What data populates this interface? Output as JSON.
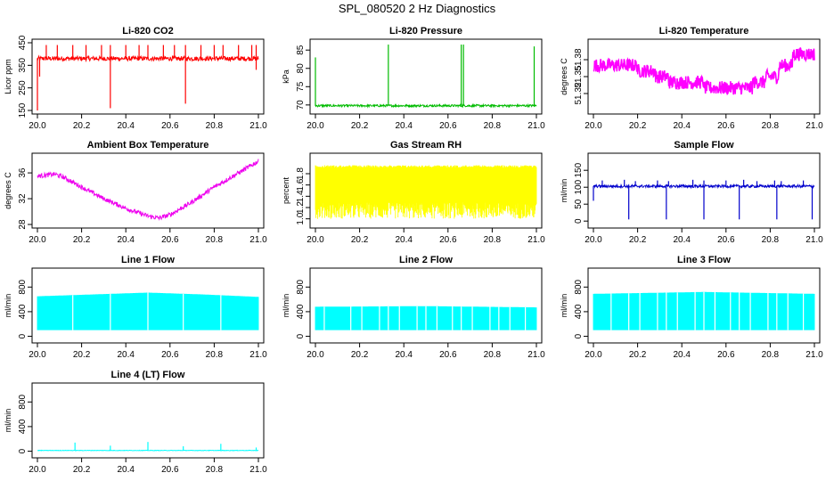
{
  "figure": {
    "title": "SPL_080520  2 Hz Diagnostics"
  },
  "chart_data": [
    {
      "type": "line",
      "title": "Li-820 CO2",
      "ylabel": "Licor ppm",
      "color": "#ff0000",
      "xlim": [
        20.0,
        21.0
      ],
      "ylim": [
        150,
        450
      ],
      "xticks": [
        "20.0",
        "20.2",
        "20.4",
        "20.6",
        "20.8",
        "21.0"
      ],
      "yticks": [
        "150",
        "250",
        "350",
        "450"
      ],
      "baseline": 380,
      "noise": 10,
      "spikes": [
        [
          20.04,
          440
        ],
        [
          20.09,
          440
        ],
        [
          20.16,
          440
        ],
        [
          20.22,
          440
        ],
        [
          20.29,
          440
        ],
        [
          20.33,
          440
        ],
        [
          20.4,
          440
        ],
        [
          20.46,
          440
        ],
        [
          20.5,
          440
        ],
        [
          20.57,
          440
        ],
        [
          20.62,
          440
        ],
        [
          20.67,
          440
        ],
        [
          20.74,
          440
        ],
        [
          20.8,
          440
        ],
        [
          20.84,
          440
        ],
        [
          20.91,
          440
        ],
        [
          20.97,
          440
        ],
        [
          20.99,
          440
        ]
      ],
      "dips": [
        [
          20.0,
          150
        ],
        [
          20.01,
          300
        ],
        [
          20.33,
          160
        ],
        [
          20.67,
          180
        ],
        [
          20.99,
          330
        ]
      ]
    },
    {
      "type": "line",
      "title": "Li-820 Pressure",
      "ylabel": "kPa",
      "color": "#00bb00",
      "xlim": [
        20.0,
        21.0
      ],
      "ylim": [
        68.5,
        87
      ],
      "xticks": [
        "20.0",
        "20.2",
        "20.4",
        "20.6",
        "20.8",
        "21.0"
      ],
      "yticks": [
        "70",
        "75",
        "80",
        "85"
      ],
      "baseline": 69.8,
      "noise": 0.3,
      "spikes": [
        [
          20.0,
          83
        ],
        [
          20.33,
          86.5
        ],
        [
          20.66,
          86.5
        ],
        [
          20.67,
          86.5
        ],
        [
          20.99,
          86
        ]
      ],
      "dips": []
    },
    {
      "type": "line",
      "title": "Li-820 Temperature",
      "ylabel": "degrees C",
      "color": "#ff00ff",
      "xlim": [
        20.0,
        21.0
      ],
      "ylim": [
        51.29,
        51.41
      ],
      "xticks": [
        "20.0",
        "20.2",
        "20.4",
        "20.6",
        "20.8",
        "21.0"
      ],
      "yticks": [
        "51.32",
        "51.35",
        "51.38"
      ],
      "steps": [
        [
          20.0,
          51.37
        ],
        [
          20.2,
          51.36
        ],
        [
          20.28,
          51.35
        ],
        [
          20.34,
          51.34
        ],
        [
          20.5,
          51.33
        ],
        [
          20.6,
          51.33
        ],
        [
          20.72,
          51.34
        ],
        [
          20.78,
          51.35
        ],
        [
          20.84,
          51.37
        ],
        [
          20.9,
          51.39
        ],
        [
          21.0,
          51.39
        ]
      ],
      "noise": 0.012
    },
    {
      "type": "line",
      "title": "Ambient Box Temperature",
      "ylabel": "degrees C",
      "color": "#ee00ee",
      "xlim": [
        20.0,
        21.0
      ],
      "ylim": [
        28,
        38.5
      ],
      "xticks": [
        "20.0",
        "20.2",
        "20.4",
        "20.6",
        "20.8",
        "21.0"
      ],
      "yticks": [
        "28",
        "32",
        "36"
      ],
      "curve": [
        [
          20.0,
          35.5
        ],
        [
          20.08,
          35.8
        ],
        [
          20.12,
          35.3
        ],
        [
          20.2,
          33.8
        ],
        [
          20.3,
          32.0
        ],
        [
          20.4,
          30.5
        ],
        [
          20.5,
          29.3
        ],
        [
          20.55,
          29.0
        ],
        [
          20.6,
          29.5
        ],
        [
          20.7,
          31.5
        ],
        [
          20.8,
          33.8
        ],
        [
          20.9,
          35.8
        ],
        [
          21.0,
          37.8
        ]
      ],
      "noise": 0.35
    },
    {
      "type": "line",
      "title": "Gas Stream RH",
      "ylabel": "percent",
      "color": "#ffff00",
      "xlim": [
        20.0,
        21.0
      ],
      "ylim": [
        0.9,
        2.1
      ],
      "xticks": [
        "20.0",
        "20.2",
        "20.4",
        "20.6",
        "20.8",
        "21.0"
      ],
      "yticks": [
        "1.0",
        "1.2",
        "1.4",
        "1.6",
        "1.8"
      ],
      "band": [
        1.0,
        1.95
      ],
      "center": 1.65
    },
    {
      "type": "line",
      "title": "Sample Flow",
      "ylabel": "ml/min",
      "color": "#0000cc",
      "xlim": [
        20.0,
        21.0
      ],
      "ylim": [
        -10,
        190
      ],
      "xticks": [
        "20.0",
        "20.2",
        "20.4",
        "20.6",
        "20.8",
        "21.0"
      ],
      "yticks": [
        "0",
        "50",
        "100",
        "150"
      ],
      "baseline": 103,
      "noise": 4,
      "spikes": [
        [
          20.04,
          120
        ],
        [
          20.14,
          122
        ],
        [
          20.19,
          118
        ],
        [
          20.29,
          120
        ],
        [
          20.34,
          118
        ],
        [
          20.45,
          122
        ],
        [
          20.5,
          120
        ],
        [
          20.6,
          120
        ],
        [
          20.68,
          122
        ],
        [
          20.74,
          118
        ],
        [
          20.82,
          120
        ],
        [
          20.85,
          118
        ],
        [
          20.95,
          120
        ]
      ],
      "dips": [
        [
          20.0,
          60
        ],
        [
          20.16,
          5
        ],
        [
          20.33,
          5
        ],
        [
          20.5,
          5
        ],
        [
          20.66,
          5
        ],
        [
          20.83,
          5
        ],
        [
          20.99,
          5
        ]
      ]
    },
    {
      "type": "line",
      "title": "Line 1 Flow",
      "ylabel": "ml/min",
      "color": "#00ffff",
      "xlim": [
        20.0,
        21.0
      ],
      "ylim": [
        -50,
        1050
      ],
      "xticks": [
        "20.0",
        "20.2",
        "20.4",
        "20.6",
        "20.8",
        "21.0"
      ],
      "yticks": [
        "0",
        "400",
        "800"
      ],
      "band": [
        100,
        650
      ],
      "top_curve": [
        [
          20.0,
          650
        ],
        [
          20.25,
          680
        ],
        [
          20.5,
          710
        ],
        [
          20.75,
          680
        ],
        [
          21.0,
          640
        ]
      ],
      "gaps": [
        20.16,
        20.33,
        20.5,
        20.66,
        20.83
      ]
    },
    {
      "type": "line",
      "title": "Line 2 Flow",
      "ylabel": "ml/min",
      "color": "#00ffff",
      "xlim": [
        20.0,
        21.0
      ],
      "ylim": [
        -50,
        1050
      ],
      "xticks": [
        "20.0",
        "20.2",
        "20.4",
        "20.6",
        "20.8",
        "21.0"
      ],
      "yticks": [
        "0",
        "400",
        "800"
      ],
      "band": [
        100,
        480
      ],
      "top_curve": [
        [
          20.0,
          480
        ],
        [
          20.5,
          490
        ],
        [
          21.0,
          470
        ]
      ],
      "gaps": [
        20.04,
        20.16,
        20.21,
        20.29,
        20.33,
        20.38,
        20.46,
        20.5,
        20.55,
        20.62,
        20.66,
        20.71,
        20.79,
        20.83,
        20.88,
        20.95
      ]
    },
    {
      "type": "line",
      "title": "Line 3 Flow",
      "ylabel": "ml/min",
      "color": "#00ffff",
      "xlim": [
        20.0,
        21.0
      ],
      "ylim": [
        -50,
        1050
      ],
      "xticks": [
        "20.0",
        "20.2",
        "20.4",
        "20.6",
        "20.8",
        "21.0"
      ],
      "yticks": [
        "0",
        "400",
        "800"
      ],
      "band": [
        100,
        700
      ],
      "top_curve": [
        [
          20.0,
          690
        ],
        [
          20.5,
          720
        ],
        [
          21.0,
          690
        ]
      ],
      "gaps": [
        20.08,
        20.16,
        20.21,
        20.29,
        20.33,
        20.38,
        20.46,
        20.5,
        20.55,
        20.62,
        20.66,
        20.71,
        20.79,
        20.83,
        20.88,
        20.95
      ]
    },
    {
      "type": "line",
      "title": "Line 4 (LT) Flow",
      "ylabel": "ml/min",
      "color": "#00ffff",
      "xlim": [
        20.0,
        21.0
      ],
      "ylim": [
        -50,
        1050
      ],
      "xticks": [
        "20.0",
        "20.2",
        "20.4",
        "20.6",
        "20.8",
        "21.0"
      ],
      "yticks": [
        "0",
        "400",
        "800"
      ],
      "baseline": 12,
      "noise": 4,
      "spikes": [
        [
          20.17,
          140
        ],
        [
          20.33,
          90
        ],
        [
          20.5,
          150
        ],
        [
          20.66,
          80
        ],
        [
          20.83,
          120
        ],
        [
          20.99,
          60
        ]
      ],
      "dips": []
    }
  ]
}
